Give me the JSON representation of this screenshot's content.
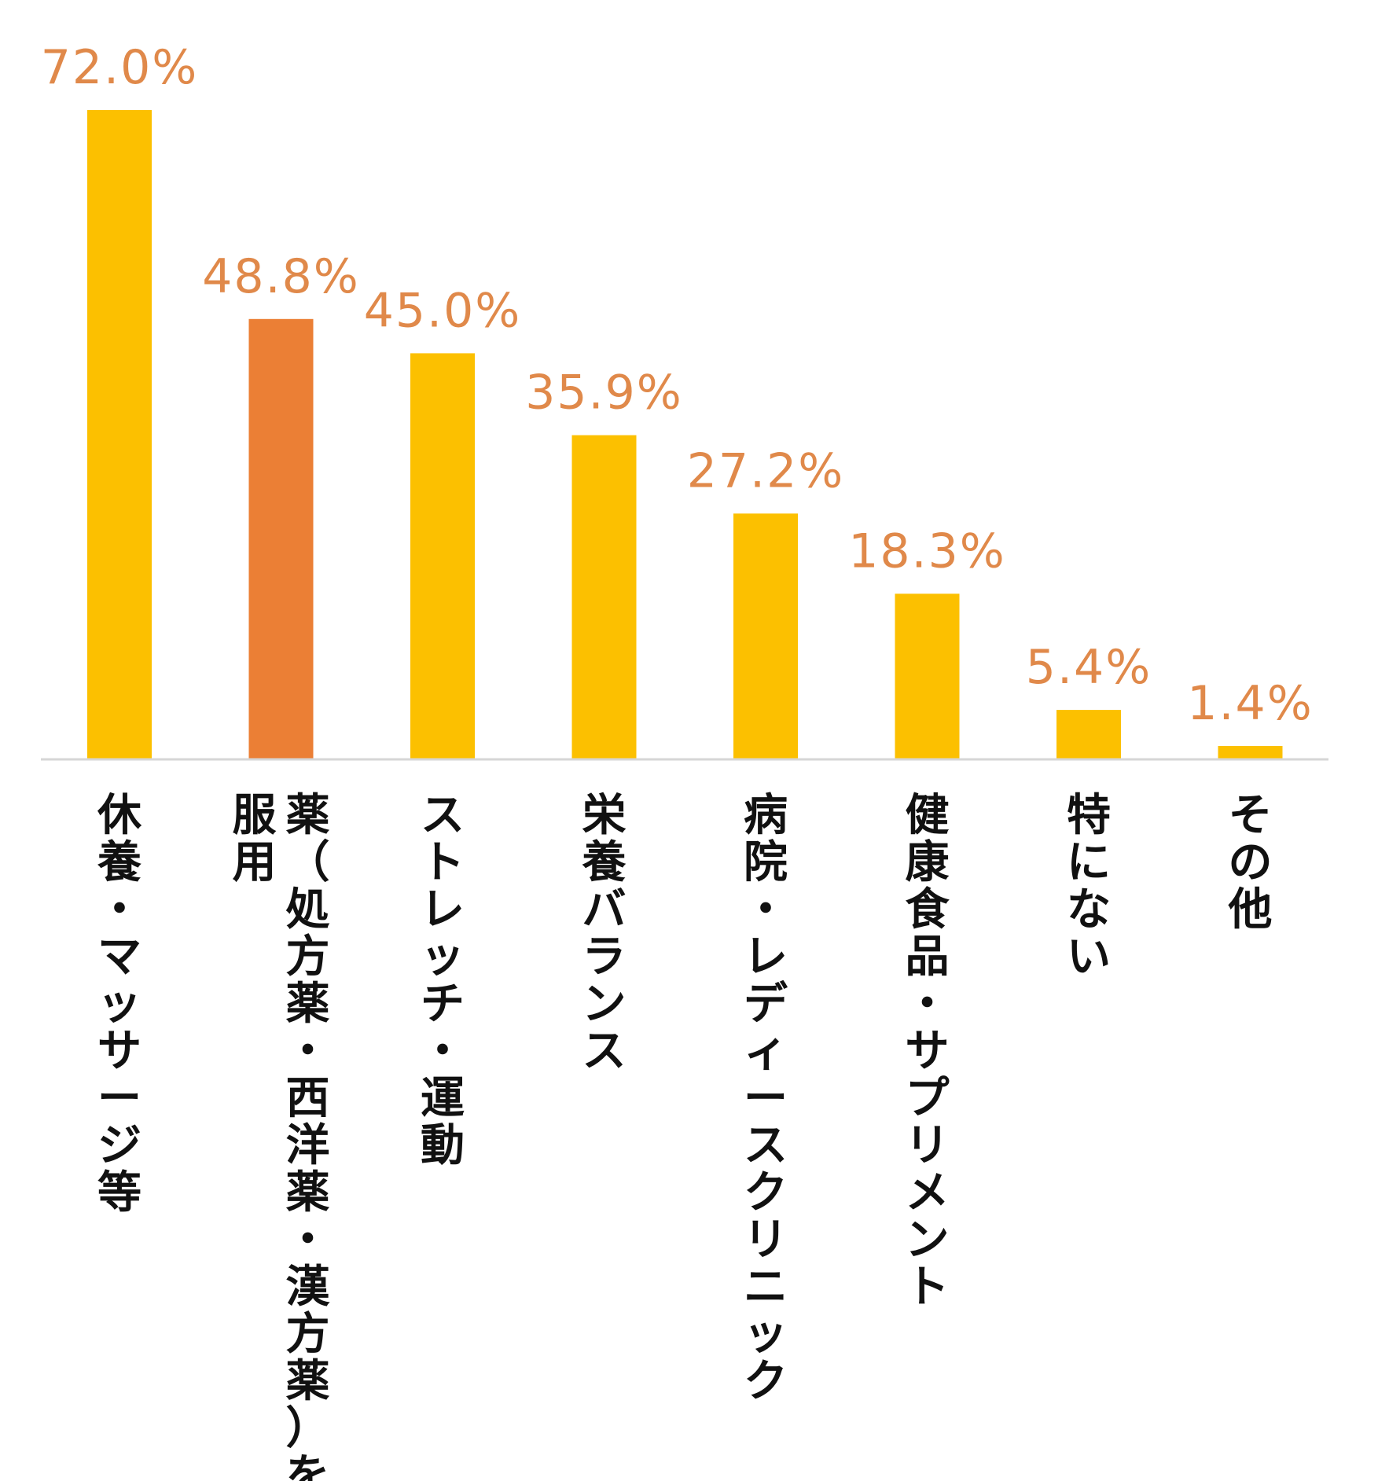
{
  "colors": {
    "bar_default": "#FCC000",
    "bar_highlight": "#EB7F35",
    "value_label": "#E0894A",
    "axis": "#D6D6D6",
    "category_text": "#111111"
  },
  "chart_data": {
    "type": "bar",
    "title": "",
    "xlabel": "",
    "ylabel": "",
    "ylim": [
      0,
      72
    ],
    "grid": false,
    "legend": "none",
    "categories": [
      [
        "休養・マッサージ等"
      ],
      [
        "薬（処方薬・西洋薬・漢方薬）を",
        "服用"
      ],
      [
        "ストレッチ・運動"
      ],
      [
        "栄養バランス"
      ],
      [
        "病院・レディースクリニック"
      ],
      [
        "健康食品・サプリメント"
      ],
      [
        "特にない"
      ],
      [
        "その他"
      ]
    ],
    "values": [
      72.0,
      48.8,
      45.0,
      35.9,
      27.2,
      18.3,
      5.4,
      1.4
    ],
    "value_labels": [
      "72.0%",
      "48.8%",
      "45.0%",
      "35.9%",
      "27.2%",
      "18.3%",
      "5.4%",
      "1.4%"
    ],
    "highlight_index": 1
  }
}
